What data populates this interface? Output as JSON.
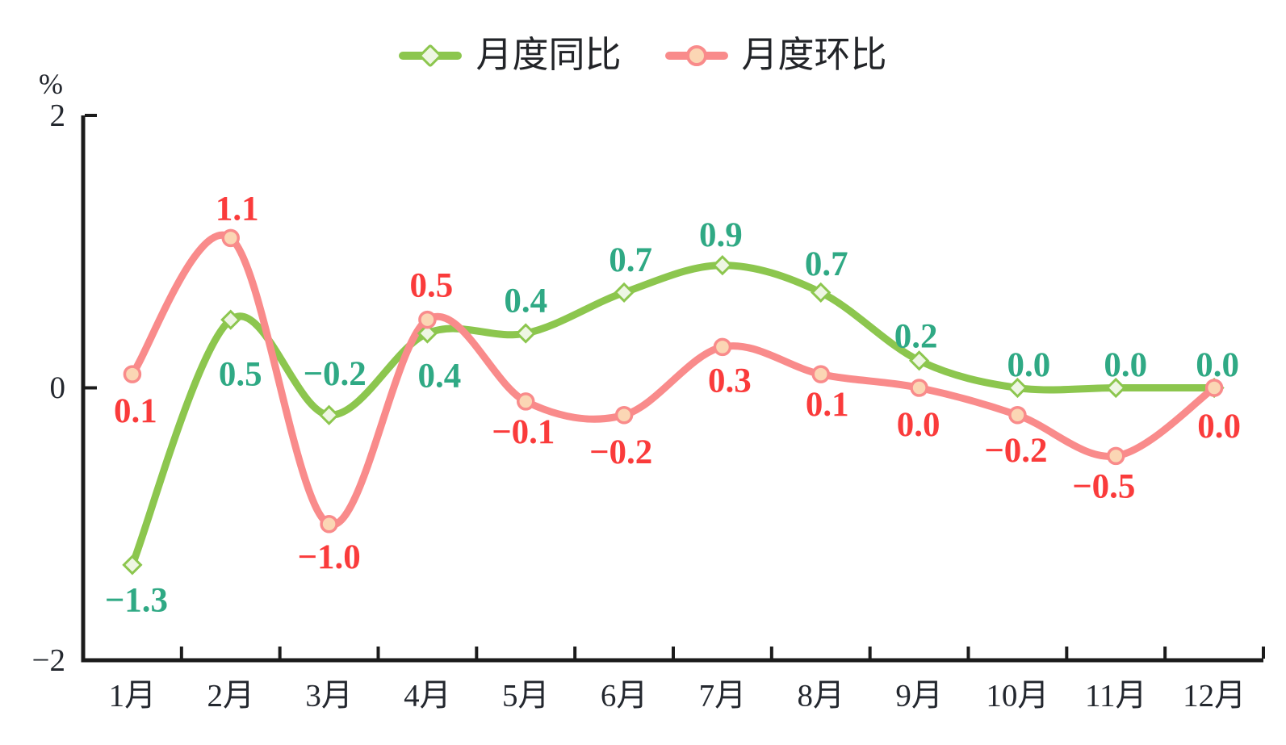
{
  "legend": {
    "items": [
      {
        "label": "月度同比",
        "marker": "diamond",
        "color": "#8cc64e",
        "marker_fill": "#eef6e3"
      },
      {
        "label": "月度环比",
        "marker": "circle",
        "color": "#f98b8b",
        "marker_fill": "#fbd6b4"
      }
    ]
  },
  "chart_data": {
    "type": "line",
    "title": "",
    "unit_label": "%",
    "xlabel": "",
    "ylabel": "%",
    "categories": [
      "1月",
      "2月",
      "3月",
      "4月",
      "5月",
      "6月",
      "7月",
      "8月",
      "9月",
      "10月",
      "11月",
      "12月"
    ],
    "ylim": [
      -2,
      2
    ],
    "yticks": [
      {
        "v": 2,
        "label": "2"
      },
      {
        "v": 0,
        "label": "0"
      },
      {
        "v": -2,
        "label": "−2"
      }
    ],
    "grid": false,
    "smooth": true,
    "legend_position": "top-center",
    "axis_color": "#1b1b1b",
    "tick_label_color": "#23272e",
    "series": [
      {
        "name": "月度同比",
        "color": "#8cc64e",
        "marker": "diamond",
        "marker_fill": "#eef6e3",
        "label_color": "#2fa984",
        "values": [
          -1.3,
          0.5,
          -0.2,
          0.4,
          0.4,
          0.7,
          0.9,
          0.7,
          0.2,
          0.0,
          0.0,
          0.0
        ],
        "point_labels": [
          "−1.3",
          "0.5",
          "−0.2",
          "0.4",
          "0.4",
          "0.7",
          "0.9",
          "0.7",
          "0.2",
          "0.0",
          "0.0",
          "0.0"
        ],
        "label_dx": [
          5,
          12,
          7,
          15,
          0,
          8,
          -2,
          7,
          -4,
          14,
          12,
          4
        ],
        "label_dy": [
          44,
          68,
          -51,
          53,
          -40,
          -40,
          -37,
          -35,
          -30,
          -28,
          -28,
          -28
        ]
      },
      {
        "name": "月度环比",
        "color": "#f98b8b",
        "marker": "circle",
        "marker_fill": "#fbd6b4",
        "label_color": "#fa3b3b",
        "values": [
          0.1,
          1.1,
          -1.0,
          0.5,
          -0.1,
          -0.2,
          0.3,
          0.1,
          0.0,
          -0.2,
          -0.5,
          0.0
        ],
        "point_labels": [
          "0.1",
          "1.1",
          "−1.0",
          "0.5",
          "−0.1",
          "−0.2",
          "0.3",
          "0.1",
          "0.0",
          "−0.2",
          "−0.5",
          "0.0"
        ],
        "label_dx": [
          4,
          8,
          0,
          5,
          -3,
          -4,
          9,
          8,
          -1,
          -2,
          -15,
          6
        ],
        "label_dy": [
          46,
          -36,
          41,
          -42,
          38,
          46,
          42,
          38,
          46,
          44,
          38,
          48
        ]
      }
    ]
  }
}
